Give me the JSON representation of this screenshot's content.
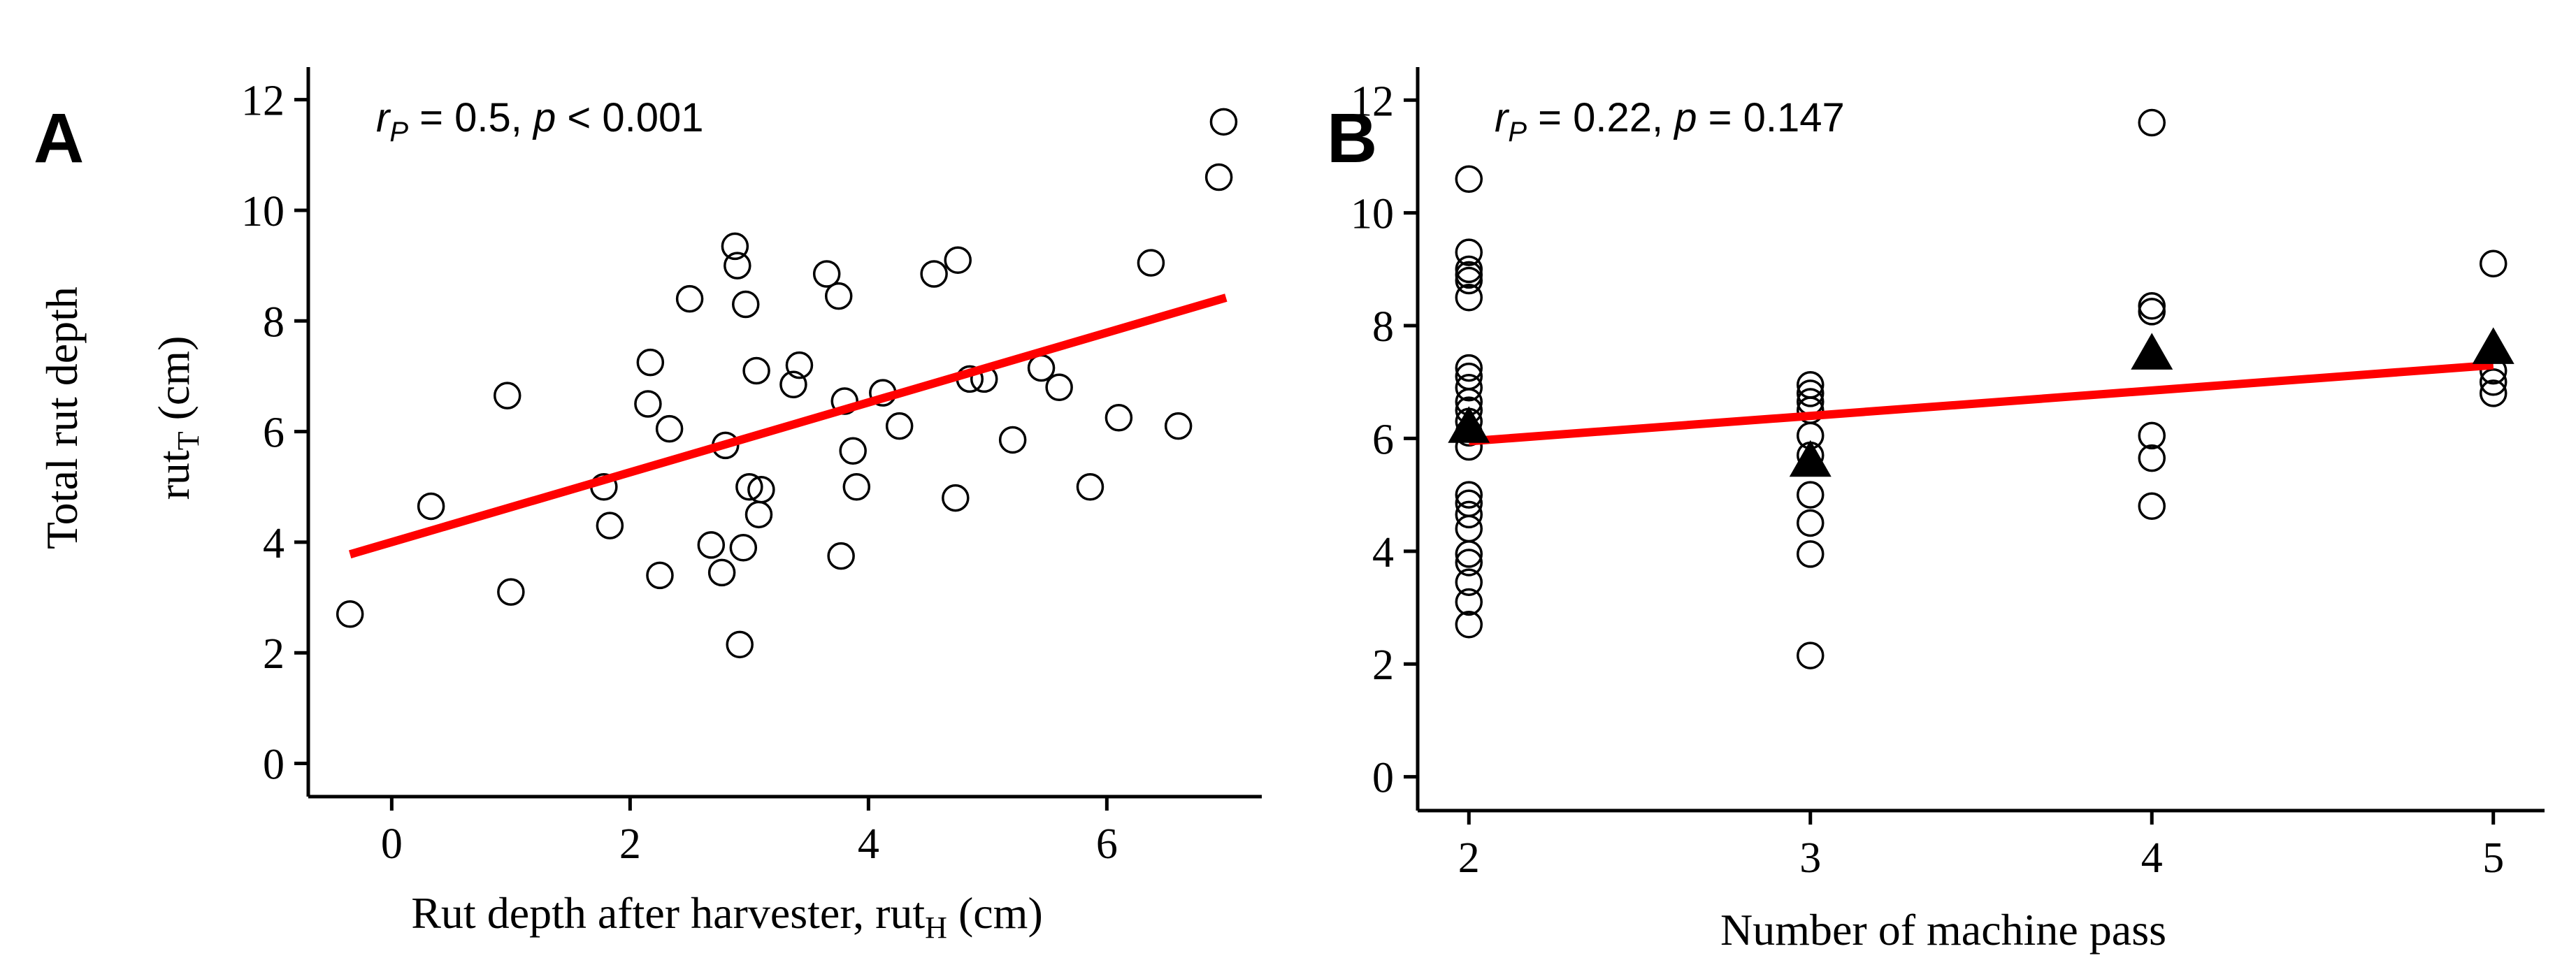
{
  "figure": {
    "ylabel_line1": "Total rut depth",
    "ylabel_line2_main": "rut",
    "ylabel_line2_sub": "T",
    "ylabel_line2_tail": " (cm)"
  },
  "panels": {
    "a": {
      "letter": "A",
      "stat_r": "r",
      "stat_r_sub": "P",
      "stat_mid": " = 0.5, ",
      "stat_p": "p",
      "stat_tail": " < 0.001",
      "xlabel_main": "Rut depth after harvester, rut",
      "xlabel_sub": "H",
      "xlabel_tail": " (cm)"
    },
    "b": {
      "letter": "B",
      "stat_r": "r",
      "stat_r_sub": "P",
      "stat_mid": " = 0.22, ",
      "stat_p": "p",
      "stat_tail": " = 0.147",
      "xlabel": "Number of machine pass"
    }
  },
  "colors": {
    "fit_line": "#ff0000",
    "points": "#000000",
    "means": "#000000"
  },
  "chart_data": [
    {
      "type": "scatter",
      "panel": "A",
      "xlabel": "Rut depth after harvester, rutH (cm)",
      "ylabel": "Total rut depth rutT (cm)",
      "xlim": [
        -0.7,
        7.3
      ],
      "ylim": [
        -0.6,
        12.4
      ],
      "x_ticks": [
        0,
        2,
        4,
        6
      ],
      "y_ticks": [
        0,
        2,
        4,
        6,
        8,
        10,
        12
      ],
      "grid": false,
      "annotation": "rP = 0.5, p < 0.001",
      "points": [
        [
          -0.35,
          2.7
        ],
        [
          0.33,
          4.65
        ],
        [
          0.97,
          6.65
        ],
        [
          1.0,
          3.1
        ],
        [
          1.78,
          5.0
        ],
        [
          1.83,
          4.3
        ],
        [
          2.15,
          6.5
        ],
        [
          2.17,
          7.25
        ],
        [
          2.25,
          3.4
        ],
        [
          2.33,
          6.05
        ],
        [
          2.5,
          8.4
        ],
        [
          2.68,
          3.95
        ],
        [
          2.77,
          3.45
        ],
        [
          2.8,
          5.75
        ],
        [
          2.88,
          9.35
        ],
        [
          2.9,
          9.0
        ],
        [
          2.92,
          2.15
        ],
        [
          2.95,
          3.9
        ],
        [
          2.97,
          8.3
        ],
        [
          3.0,
          5.0
        ],
        [
          3.06,
          7.1
        ],
        [
          3.08,
          4.5
        ],
        [
          3.1,
          4.95
        ],
        [
          3.37,
          6.85
        ],
        [
          3.42,
          7.2
        ],
        [
          3.65,
          8.85
        ],
        [
          3.75,
          8.45
        ],
        [
          3.77,
          3.75
        ],
        [
          3.8,
          6.55
        ],
        [
          3.87,
          5.65
        ],
        [
          3.9,
          5.0
        ],
        [
          4.12,
          6.7
        ],
        [
          4.26,
          6.1
        ],
        [
          4.55,
          8.85
        ],
        [
          4.73,
          4.8
        ],
        [
          4.75,
          9.1
        ],
        [
          4.85,
          6.95
        ],
        [
          4.97,
          6.95
        ],
        [
          5.21,
          5.85
        ],
        [
          5.45,
          7.15
        ],
        [
          5.6,
          6.8
        ],
        [
          5.86,
          5.0
        ],
        [
          6.1,
          6.25
        ],
        [
          6.37,
          9.05
        ],
        [
          6.6,
          6.1
        ],
        [
          6.94,
          10.6
        ],
        [
          6.98,
          11.6
        ]
      ],
      "fit_line": {
        "x": [
          -0.35,
          7.0
        ],
        "y": [
          3.78,
          8.42
        ]
      }
    },
    {
      "type": "scatter",
      "panel": "B",
      "xlabel": "Number of machine pass",
      "ylabel": "Total rut depth rutT (cm)",
      "xlim": [
        1.85,
        5.15
      ],
      "ylim": [
        -0.6,
        12.4
      ],
      "x_ticks": [
        2,
        3,
        4,
        5
      ],
      "y_ticks": [
        0,
        2,
        4,
        6,
        8,
        10,
        12
      ],
      "grid": false,
      "annotation": "rP = 0.22, p = 0.147",
      "points": [
        [
          2,
          10.6
        ],
        [
          2,
          9.3
        ],
        [
          2,
          9.0
        ],
        [
          2,
          8.9
        ],
        [
          2,
          8.8
        ],
        [
          2,
          8.5
        ],
        [
          2,
          7.25
        ],
        [
          2,
          7.1
        ],
        [
          2,
          6.9
        ],
        [
          2,
          6.65
        ],
        [
          2,
          6.5
        ],
        [
          2,
          6.3
        ],
        [
          2,
          6.1
        ],
        [
          2,
          5.85
        ],
        [
          2,
          5.0
        ],
        [
          2,
          4.85
        ],
        [
          2,
          4.65
        ],
        [
          2,
          4.4
        ],
        [
          2,
          3.95
        ],
        [
          2,
          3.8
        ],
        [
          2,
          3.45
        ],
        [
          2,
          3.1
        ],
        [
          2,
          2.7
        ],
        [
          3,
          6.95
        ],
        [
          3,
          6.8
        ],
        [
          3,
          6.65
        ],
        [
          3,
          6.5
        ],
        [
          3,
          6.05
        ],
        [
          3,
          5.7
        ],
        [
          3,
          5.0
        ],
        [
          3,
          4.5
        ],
        [
          3,
          3.95
        ],
        [
          3,
          2.15
        ],
        [
          4,
          11.6
        ],
        [
          4,
          8.35
        ],
        [
          4,
          8.25
        ],
        [
          4,
          6.05
        ],
        [
          4,
          5.65
        ],
        [
          4,
          4.8
        ],
        [
          5,
          9.1
        ],
        [
          5,
          7.2
        ],
        [
          5,
          7.0
        ],
        [
          5,
          6.8
        ]
      ],
      "means": [
        [
          2,
          6.2
        ],
        [
          3,
          5.6
        ],
        [
          4,
          7.5
        ],
        [
          5,
          7.6
        ]
      ],
      "fit_line": {
        "x": [
          2,
          5
        ],
        "y": [
          5.95,
          7.3
        ]
      }
    }
  ]
}
